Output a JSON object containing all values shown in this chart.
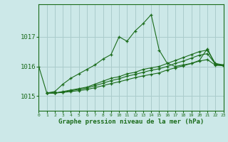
{
  "title": "Graphe pression niveau de la mer (hPa)",
  "background_color": "#cce8e8",
  "grid_color": "#aacccc",
  "line_color": "#1a6b1a",
  "xlim": [
    0,
    23
  ],
  "ylim": [
    1014.5,
    1018.1
  ],
  "yticks": [
    1015,
    1016,
    1017
  ],
  "xticks": [
    0,
    1,
    2,
    3,
    4,
    5,
    6,
    7,
    8,
    9,
    10,
    11,
    12,
    13,
    14,
    15,
    16,
    17,
    18,
    19,
    20,
    21,
    22,
    23
  ],
  "series1_x": [
    0,
    1,
    2,
    3,
    4,
    5,
    6,
    7,
    8,
    9,
    10,
    11,
    12,
    13,
    14,
    15,
    16,
    17,
    18,
    19,
    20,
    21,
    22,
    23
  ],
  "series1_y": [
    1016.0,
    1015.1,
    1015.15,
    1015.4,
    1015.6,
    1015.75,
    1015.9,
    1016.05,
    1016.25,
    1016.4,
    1017.0,
    1016.85,
    1017.2,
    1017.45,
    1017.75,
    1016.55,
    1016.1,
    1016.0,
    1016.05,
    1016.1,
    1016.2,
    1016.6,
    1016.05,
    1016.05
  ],
  "series2_x": [
    1,
    2,
    3,
    4,
    5,
    6,
    7,
    8,
    9,
    10,
    11,
    12,
    13,
    14,
    15,
    16,
    17,
    18,
    19,
    20,
    21,
    22,
    23
  ],
  "series2_y": [
    1015.1,
    1015.1,
    1015.15,
    1015.2,
    1015.25,
    1015.3,
    1015.4,
    1015.5,
    1015.6,
    1015.65,
    1015.75,
    1015.8,
    1015.9,
    1015.95,
    1016.0,
    1016.1,
    1016.2,
    1016.3,
    1016.4,
    1016.5,
    1016.55,
    1016.1,
    1016.05
  ],
  "series3_x": [
    1,
    2,
    3,
    4,
    5,
    6,
    7,
    8,
    9,
    10,
    11,
    12,
    13,
    14,
    15,
    16,
    17,
    18,
    19,
    20,
    21,
    22,
    23
  ],
  "series3_y": [
    1015.1,
    1015.1,
    1015.13,
    1015.18,
    1015.22,
    1015.27,
    1015.35,
    1015.43,
    1015.52,
    1015.58,
    1015.67,
    1015.73,
    1015.8,
    1015.87,
    1015.92,
    1016.0,
    1016.1,
    1016.18,
    1016.28,
    1016.38,
    1016.43,
    1016.08,
    1016.04
  ],
  "series4_x": [
    1,
    2,
    3,
    4,
    5,
    6,
    7,
    8,
    9,
    10,
    11,
    12,
    13,
    14,
    15,
    16,
    17,
    18,
    19,
    20,
    21,
    22,
    23
  ],
  "series4_y": [
    1015.1,
    1015.1,
    1015.12,
    1015.15,
    1015.18,
    1015.22,
    1015.28,
    1015.35,
    1015.42,
    1015.48,
    1015.55,
    1015.62,
    1015.68,
    1015.73,
    1015.78,
    1015.88,
    1015.95,
    1016.02,
    1016.1,
    1016.18,
    1016.23,
    1016.04,
    1016.02
  ]
}
